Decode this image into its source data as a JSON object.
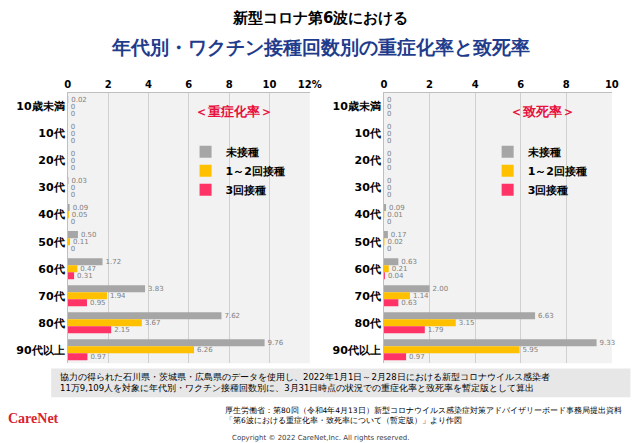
{
  "title": "新型コロナ第6波における",
  "subtitle": "年代別・ワクチン接種回数別の重症化率と致死率",
  "note": [
    "協力の得られた石川県・茨城県・広島県のデータを使用し、2022年1月1日～2月28日における新型コロナウイルス感染者",
    "11万9,109人を対象に年代別・ワクチン接種回数別に、3月31日時点の状況での重症化率と致死率を暫定版として算出"
  ],
  "source": [
    "厚生労働省：第80回（令和4年4月13日）新型コロナウイルス感染症対策アドバイザリーボード事務局提出資料",
    "「第6波における重症化率・致死率について（暫定版）」より作図"
  ],
  "logo": "CareNet",
  "copyright": "Copyright © 2022 CareNet,Inc. All rights reserved.",
  "chart_data": [
    {
      "type": "bar",
      "title": "＜重症化率＞",
      "orientation": "horizontal",
      "categories": [
        "10歳未満",
        "10代",
        "20代",
        "30代",
        "40代",
        "50代",
        "60代",
        "70代",
        "80代",
        "90代以上"
      ],
      "series": [
        {
          "name": "未接種",
          "color": "#a6a6a6",
          "values": [
            0.02,
            0,
            0,
            0.03,
            0.09,
            0.5,
            1.72,
            3.83,
            7.62,
            9.76
          ],
          "value_labels": [
            "0.02",
            "0",
            "0",
            "0.03",
            "0.09",
            "0.50",
            "1.72",
            "3.83",
            "7.62",
            "9.76"
          ]
        },
        {
          "name": "1～2回接種",
          "color": "#ffc000",
          "values": [
            0,
            0,
            0,
            0,
            0.05,
            0.11,
            0.47,
            1.94,
            3.67,
            6.26
          ],
          "value_labels": [
            "0",
            "0",
            "0",
            "0",
            "0.05",
            "0.11",
            "0.47",
            "1.94",
            "3.67",
            "6.26"
          ]
        },
        {
          "name": "3回接種",
          "color": "#ff3366",
          "values": [
            0,
            0,
            0,
            0,
            0,
            0,
            0.31,
            0.95,
            2.15,
            0.97
          ],
          "value_labels": [
            "0",
            "0",
            "0",
            "0",
            "0",
            "0",
            "0.31",
            "0.95",
            "2.15",
            "0.97"
          ]
        }
      ],
      "xlim": [
        0,
        12
      ],
      "xticks": [
        0,
        2,
        4,
        6,
        8,
        10,
        {
          "value": 12,
          "label": "12%"
        }
      ],
      "grid": true,
      "legend": "upper right",
      "data_labels": true
    },
    {
      "type": "bar",
      "title": "＜致死率＞",
      "orientation": "horizontal",
      "categories": [
        "10歳未満",
        "10代",
        "20代",
        "30代",
        "40代",
        "50代",
        "60代",
        "70代",
        "80代",
        "90代以上"
      ],
      "series": [
        {
          "name": "未接種",
          "color": "#a6a6a6",
          "values": [
            0,
            0,
            0,
            0,
            0.09,
            0.17,
            0.63,
            2.0,
            6.63,
            9.33
          ],
          "value_labels": [
            "0",
            "0",
            "0",
            "0",
            "0.09",
            "0.17",
            "0.63",
            "2.00",
            "6.63",
            "9.33"
          ]
        },
        {
          "name": "1～2回接種",
          "color": "#ffc000",
          "values": [
            0,
            0,
            0,
            0,
            0.01,
            0.02,
            0.21,
            1.14,
            3.15,
            5.95
          ],
          "value_labels": [
            "0",
            "0",
            "0",
            "0",
            "0.01",
            "0.02",
            "0.21",
            "1.14",
            "3.15",
            "5.95"
          ]
        },
        {
          "name": "3回接種",
          "color": "#ff3366",
          "values": [
            0,
            0,
            0,
            0,
            0,
            0,
            0.04,
            0.63,
            1.79,
            0.97
          ],
          "value_labels": [
            "0",
            "0",
            "0",
            "0",
            "0",
            "0",
            "0.04",
            "0.63",
            "1.79",
            "0.97"
          ]
        }
      ],
      "xlim": [
        0,
        10
      ],
      "xticks": [
        0,
        2,
        4,
        6,
        8,
        10
      ],
      "grid": true,
      "legend": "upper right",
      "data_labels": true
    }
  ]
}
